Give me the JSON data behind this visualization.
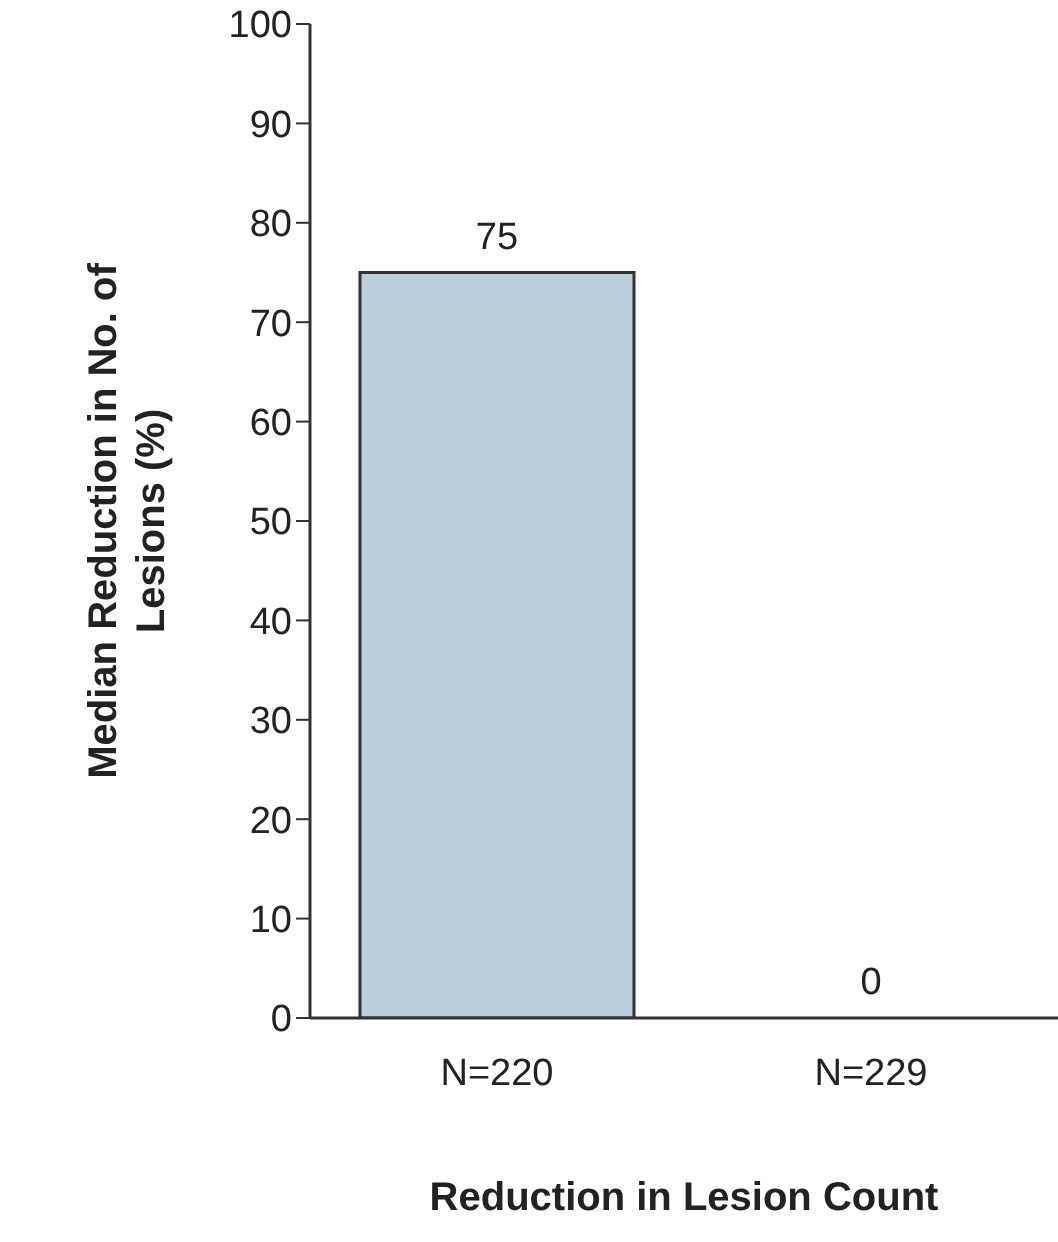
{
  "chart_data": {
    "type": "bar",
    "categories": [
      "N=220",
      "N=229"
    ],
    "values": [
      75,
      0
    ],
    "color": "#bccfdc",
    "ylim": [
      0,
      100
    ],
    "yticks": [
      0,
      10,
      20,
      30,
      40,
      50,
      60,
      70,
      80,
      90,
      100
    ],
    "xlabel": "Reduction in Lesion Count",
    "ylabel": "Median Reduction in No. of Lesions (%)",
    "data_labels": true,
    "grid": false
  }
}
